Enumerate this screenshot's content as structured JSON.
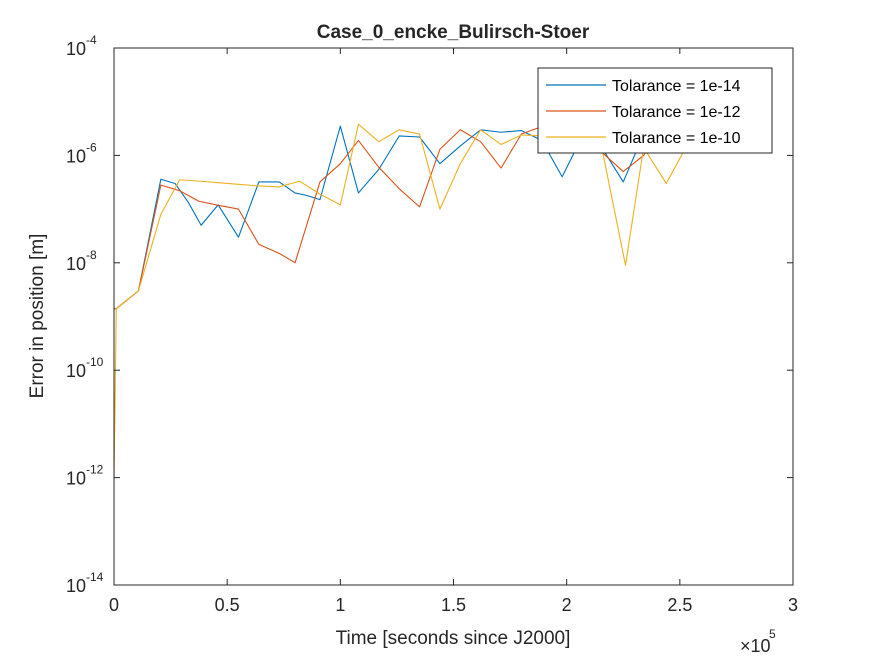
{
  "chart_data": {
    "type": "line",
    "title": "Case_0_encke_Bulirsch-Stoer",
    "xlabel": "Time [seconds since J2000]",
    "ylabel": "Error in position [m]",
    "x_multiplier": {
      "base": "×10",
      "exponent": "5"
    },
    "xlim": [
      0,
      300000
    ],
    "ylim": [
      1e-14,
      0.0001
    ],
    "yscale": "log",
    "grid": false,
    "legend_position": "top-right",
    "x_ticks": [
      {
        "value": 0,
        "label": "0"
      },
      {
        "value": 50000,
        "label": "0.5"
      },
      {
        "value": 100000,
        "label": "1"
      },
      {
        "value": 150000,
        "label": "1.5"
      },
      {
        "value": 200000,
        "label": "2"
      },
      {
        "value": 250000,
        "label": "2.5"
      },
      {
        "value": 300000,
        "label": "3"
      }
    ],
    "y_ticks": [
      {
        "value": 1e-14,
        "base": "10",
        "exp": "-14"
      },
      {
        "value": 1e-12,
        "base": "10",
        "exp": "-12"
      },
      {
        "value": 1e-10,
        "base": "10",
        "exp": "-10"
      },
      {
        "value": 1e-08,
        "base": "10",
        "exp": "-8"
      },
      {
        "value": 1e-06,
        "base": "10",
        "exp": "-6"
      },
      {
        "value": 0.0001,
        "base": "10",
        "exp": "-4"
      }
    ],
    "series": [
      {
        "name": "Tolarance = 1e-14",
        "color": "#0072BD",
        "x": [
          0,
          1000,
          10800,
          20700,
          27000,
          33000,
          38500,
          46000,
          55000,
          64000,
          73000,
          80000,
          85000,
          91000,
          100000,
          108000,
          117000,
          126000,
          135000,
          144000,
          153000,
          162000,
          171000,
          180000,
          189000,
          198000,
          207000,
          216000,
          225000,
          234000,
          240000
        ],
        "y": [
          1.4e-09,
          1.4e-09,
          3e-09,
          3.6e-07,
          3e-07,
          1.3e-07,
          5e-08,
          1.2e-07,
          3e-08,
          3.2e-07,
          3.2e-07,
          2e-07,
          1.8e-07,
          1.5e-07,
          3.5e-06,
          2e-07,
          5.5e-07,
          2.3e-06,
          2.2e-06,
          7e-07,
          1.5e-06,
          3e-06,
          2.7e-06,
          2.9e-06,
          1.9e-06,
          4e-07,
          2.3e-06,
          1.3e-06,
          3.2e-07,
          2.5e-06,
          2.7e-06
        ]
      },
      {
        "name": "Tolarance = 1e-12",
        "color": "#D95319",
        "x": [
          0,
          1000,
          10800,
          20700,
          29000,
          37500,
          45000,
          55000,
          64000,
          73000,
          80000,
          91000,
          100000,
          108000,
          117000,
          126000,
          135000,
          144000,
          153000,
          162000,
          171000,
          180000,
          187000,
          198000,
          207000,
          216000,
          225000,
          234000,
          240000
        ],
        "y": [
          1.4e-09,
          1.4e-09,
          3e-09,
          2.8e-07,
          2.2e-07,
          1.4e-07,
          1.2e-07,
          1e-07,
          2.2e-08,
          1.5e-08,
          1e-08,
          3.2e-07,
          7e-07,
          1.9e-06,
          6e-07,
          2.4e-07,
          1.1e-07,
          1.3e-06,
          3e-06,
          1.8e-06,
          5.8e-07,
          2.5e-06,
          3.2e-06,
          3e-06,
          1.4e-06,
          1.1e-06,
          5e-07,
          1e-06,
          2.5e-06
        ]
      },
      {
        "name": "Tolarance = 1e-10",
        "color": "#EDB120",
        "x": [
          0,
          500,
          1000,
          10800,
          20700,
          29000,
          38500,
          46000,
          55000,
          64000,
          73000,
          82000,
          91000,
          100000,
          108000,
          117000,
          126000,
          135000,
          144000,
          153000,
          162000,
          171000,
          180000,
          189000,
          198000,
          207000,
          216000,
          226000,
          234000,
          244000,
          253000,
          262000
        ],
        "y": [
          1e-12,
          3e-11,
          1.4e-09,
          3e-09,
          8e-08,
          3.5e-07,
          3.3e-07,
          3.1e-07,
          2.9e-07,
          2.7e-07,
          2.6e-07,
          3.3e-07,
          1.9e-07,
          1.2e-07,
          3.8e-06,
          1.8e-06,
          3e-06,
          2.5e-06,
          1e-07,
          7e-07,
          3e-06,
          1.6e-06,
          2.4e-06,
          2.3e-06,
          2.6e-06,
          1.8e-06,
          1.1e-06,
          9e-09,
          1.4e-06,
          3e-07,
          1.5e-06,
          2e-06
        ]
      }
    ]
  }
}
